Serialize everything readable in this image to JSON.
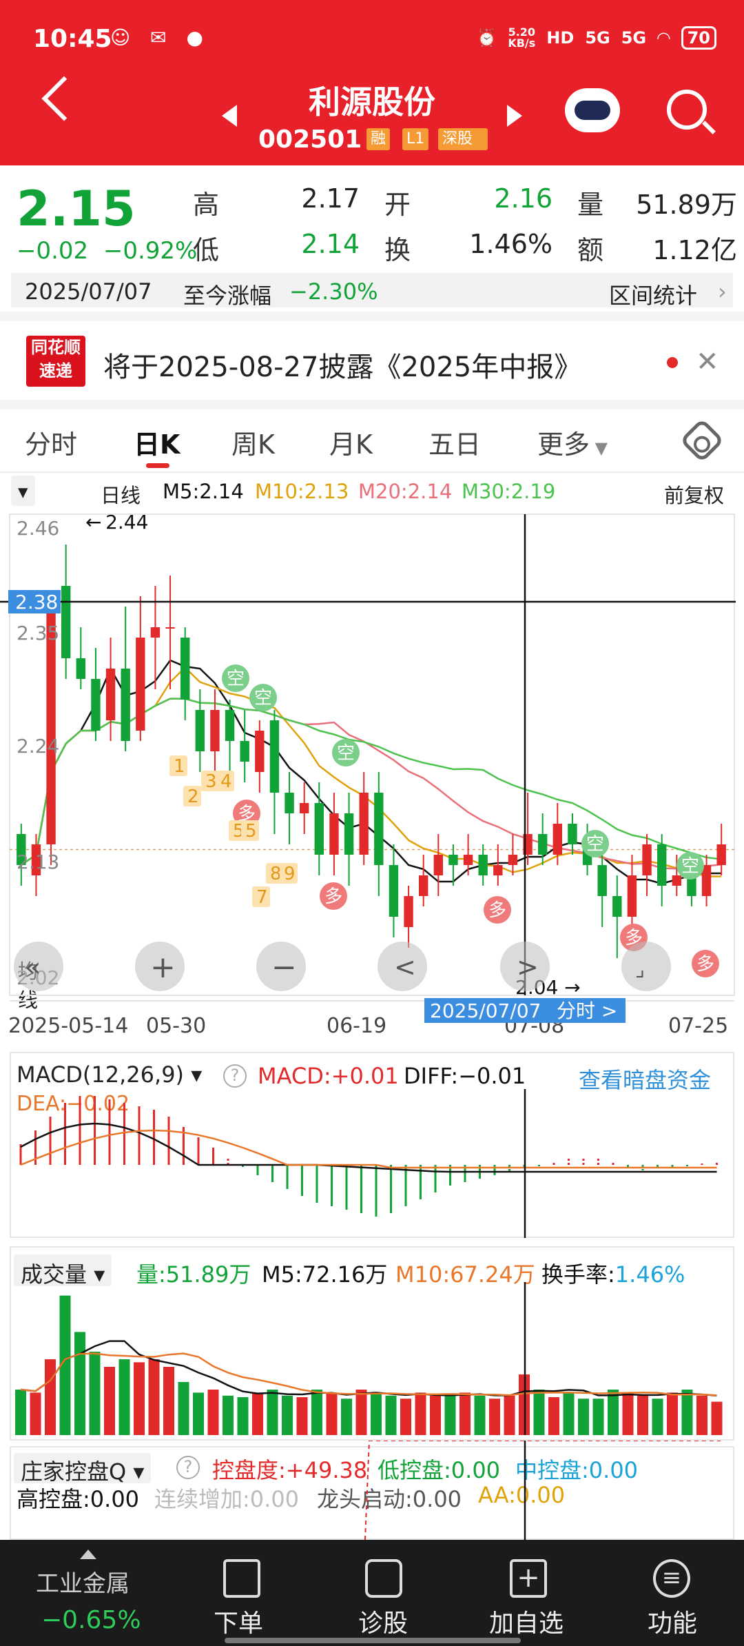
{
  "status_bar": {
    "time": "10:45",
    "net_speed_value": "5.20",
    "net_speed_unit": "KB/s",
    "signal_1": "5G",
    "signal_2": "5G",
    "battery": "70"
  },
  "header": {
    "stock_name": "利源股份",
    "stock_code": "002501",
    "tags": [
      "融",
      "L1",
      "深股"
    ]
  },
  "quote": {
    "price": "2.15",
    "change": "−0.02",
    "change_pct": "−0.92%",
    "high_label": "高",
    "high": "2.17",
    "open_label": "开",
    "open": "2.16",
    "volume_label": "量",
    "volume": "51.89万",
    "low_label": "低",
    "low": "2.14",
    "turnover_label": "换",
    "turnover": "1.46%",
    "amount_label": "额",
    "amount": "1.12亿"
  },
  "date_bar": {
    "date": "2025/07/07",
    "since_label": "至今涨幅",
    "since_value": "−2.30%",
    "stats_label": "区间统计"
  },
  "notice": {
    "logo_top": "同花顺",
    "logo_bottom": "速递",
    "text": "将于2025-08-27披露《2025年中报》"
  },
  "tabs": [
    {
      "label": "分时"
    },
    {
      "label": "日K"
    },
    {
      "label": "周K"
    },
    {
      "label": "月K"
    },
    {
      "label": "五日"
    },
    {
      "label": "更多"
    }
  ],
  "ma_bar": {
    "type_select": "均线",
    "period": "日线",
    "m5": "M5:2.14",
    "m10": "M10:2.13",
    "m20": "M20:2.14",
    "m30": "M30:2.19",
    "adjust": "前复权"
  },
  "colors": {
    "brand_red": "#e8202a",
    "up": "#e32a2a",
    "down": "#12a338",
    "m5": "#111111",
    "m10": "#e0a20a",
    "m20": "#e8707a",
    "m30": "#4ec24e"
  },
  "kline": {
    "y_labels": [
      "2.46",
      "2.35",
      "2.24",
      "2.13",
      "2.02"
    ],
    "crosshair_price": "2.38",
    "high_marker": "2.44",
    "low_marker": "2.04",
    "x_labels": [
      "2025-05-14",
      "05-30",
      "06-19",
      "07-08",
      "07-25"
    ],
    "crosshair_date": "2025/07/07",
    "fenshi_link": "分时 >",
    "signal_kong": "空",
    "signal_duo": "多",
    "tdx_numbers": [
      "1",
      "2",
      "3",
      "4",
      "5",
      "5",
      "7",
      "8",
      "9"
    ],
    "zoom_in": "+",
    "zoom_out": "−",
    "prev": "<",
    "next": ">"
  },
  "macd": {
    "title": "MACD(12,26,9)",
    "macd": "MACD:+0.01",
    "diff": "DIFF:−0.01",
    "dea": "DEA:−0.02",
    "link": "查看暗盘资金"
  },
  "volume": {
    "title": "成交量",
    "vol": "量:51.89万",
    "m5": "M5:72.16万",
    "m10": "M10:67.24万",
    "turnover_label": "换手率:",
    "turnover": "1.46%"
  },
  "control": {
    "title": "庄家控盘Q",
    "degree": "控盘度:+49.38",
    "low": "低控盘:0.00",
    "mid": "中控盘:0.00",
    "high": "高控盘:0.00",
    "cont": "连续增加:0.00",
    "dragon": "龙头启动:0.00",
    "aa": "AA:0.00"
  },
  "bottom_bar": {
    "sector": "工业金属",
    "sector_change": "−0.65%",
    "items": [
      {
        "label": "下单"
      },
      {
        "label": "诊股"
      },
      {
        "label": "加自选"
      },
      {
        "label": "功能"
      }
    ]
  }
}
